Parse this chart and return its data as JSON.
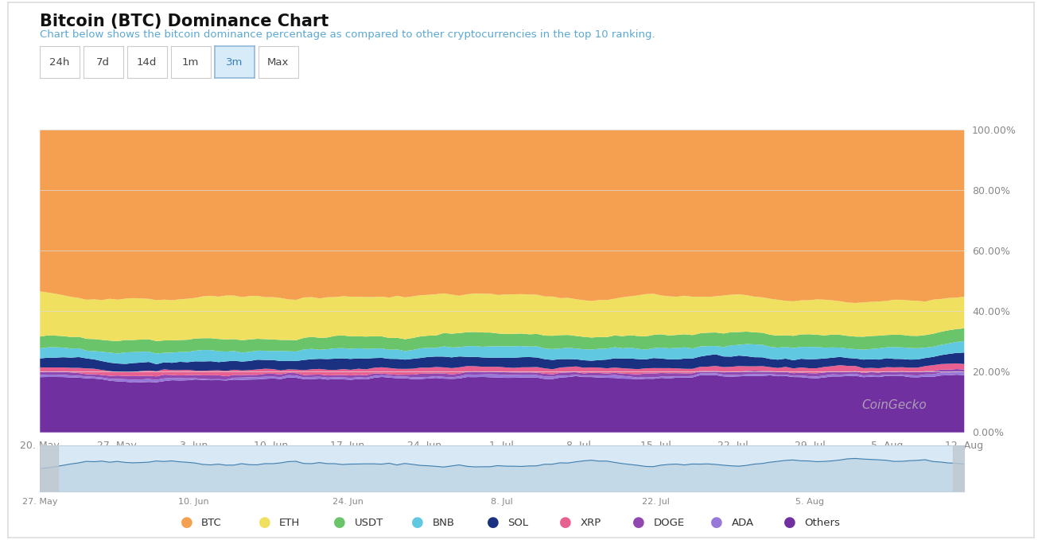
{
  "title": "Bitcoin (BTC) Dominance Chart",
  "subtitle": "Chart below shows the bitcoin dominance percentage as compared to other cryptocurrencies in the top 10 ranking.",
  "title_color": "#111111",
  "subtitle_color": "#5ba8d4",
  "bg_color": "#ffffff",
  "button_labels": [
    "24h",
    "7d",
    "14d",
    "1m",
    "3m",
    "Max"
  ],
  "active_button": "3m",
  "legend": [
    "BTC",
    "ETH",
    "USDT",
    "BNB",
    "SOL",
    "XRP",
    "DOGE",
    "ADA",
    "Others"
  ],
  "legend_colors": [
    "#f5a050",
    "#f0e060",
    "#6ac46a",
    "#60c8e0",
    "#1a3080",
    "#e86090",
    "#9048b0",
    "#9878d8",
    "#7030a0"
  ],
  "x_labels": [
    "20. May",
    "27. May",
    "3. Jun",
    "10. Jun",
    "17. Jun",
    "24. Jun",
    "1. Jul",
    "8. Jul",
    "15. Jul",
    "22. Jul",
    "29. Jul",
    "5. Aug",
    "12. Aug"
  ],
  "mini_x_labels": [
    "27. May",
    "10. Jun",
    "24. Jun",
    "8. Jul",
    "22. Jul",
    "5. Aug"
  ],
  "y_ticks": [
    0,
    20,
    40,
    60,
    80,
    100
  ],
  "y_labels": [
    "0.00%",
    "20.00%",
    "40.00%",
    "60.00%",
    "80.00%",
    "100.00%"
  ],
  "n_points": 120,
  "seed": 42,
  "btc_mean": 52.0,
  "eth_mean": 13.5,
  "usdt_mean": 3.8,
  "bnb_mean": 3.2,
  "sol_mean": 2.8,
  "xrp_mean": 1.5,
  "doge_mean": 0.9,
  "ada_mean": 0.6,
  "others_mean": 17.0,
  "watermark": "CoinGecko",
  "watermark_color": "#bbbbbb"
}
